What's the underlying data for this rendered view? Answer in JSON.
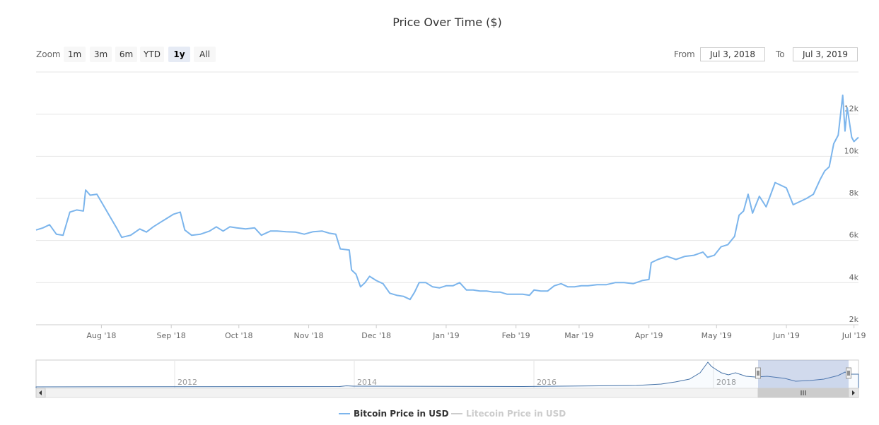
{
  "chart_data": {
    "type": "line",
    "title": "Price Over Time ($)",
    "zoom": {
      "label": "Zoom",
      "buttons": [
        "1m",
        "3m",
        "6m",
        "YTD",
        "1y",
        "All"
      ],
      "selected": "1y"
    },
    "range": {
      "from_label": "From",
      "from": "Jul 3, 2018",
      "to_label": "To",
      "to": "Jul 3, 2019"
    },
    "x_ticks": [
      "Aug '18",
      "Sep '18",
      "Oct '18",
      "Nov '18",
      "Dec '18",
      "Jan '19",
      "Feb '19",
      "Mar '19",
      "Apr '19",
      "May '19",
      "Jun '19",
      "Jul '19"
    ],
    "y_ticks": [
      "2k",
      "4k",
      "6k",
      "8k",
      "10k",
      "12k"
    ],
    "ylim": [
      2000,
      12000
    ],
    "grid": true,
    "series": [
      {
        "name": "Bitcoin Price in USD",
        "color": "#7cb5ec",
        "visible": true,
        "points": [
          [
            "2018-07-03",
            6500
          ],
          [
            "2018-07-06",
            6600
          ],
          [
            "2018-07-09",
            6750
          ],
          [
            "2018-07-12",
            6300
          ],
          [
            "2018-07-15",
            6250
          ],
          [
            "2018-07-18",
            7350
          ],
          [
            "2018-07-21",
            7450
          ],
          [
            "2018-07-24",
            7400
          ],
          [
            "2018-07-25",
            8400
          ],
          [
            "2018-07-27",
            8150
          ],
          [
            "2018-07-30",
            8200
          ],
          [
            "2018-08-02",
            7650
          ],
          [
            "2018-08-05",
            7100
          ],
          [
            "2018-08-08",
            6550
          ],
          [
            "2018-08-10",
            6150
          ],
          [
            "2018-08-14",
            6250
          ],
          [
            "2018-08-18",
            6550
          ],
          [
            "2018-08-21",
            6400
          ],
          [
            "2018-08-24",
            6650
          ],
          [
            "2018-08-27",
            6850
          ],
          [
            "2018-08-30",
            7050
          ],
          [
            "2018-09-02",
            7250
          ],
          [
            "2018-09-05",
            7350
          ],
          [
            "2018-09-07",
            6500
          ],
          [
            "2018-09-10",
            6250
          ],
          [
            "2018-09-14",
            6300
          ],
          [
            "2018-09-18",
            6450
          ],
          [
            "2018-09-21",
            6650
          ],
          [
            "2018-09-24",
            6450
          ],
          [
            "2018-09-27",
            6650
          ],
          [
            "2018-09-30",
            6600
          ],
          [
            "2018-10-04",
            6550
          ],
          [
            "2018-10-08",
            6600
          ],
          [
            "2018-10-11",
            6250
          ],
          [
            "2018-10-15",
            6450
          ],
          [
            "2018-10-18",
            6450
          ],
          [
            "2018-10-22",
            6420
          ],
          [
            "2018-10-26",
            6400
          ],
          [
            "2018-10-30",
            6300
          ],
          [
            "2018-11-03",
            6420
          ],
          [
            "2018-11-07",
            6450
          ],
          [
            "2018-11-10",
            6350
          ],
          [
            "2018-11-13",
            6300
          ],
          [
            "2018-11-15",
            5600
          ],
          [
            "2018-11-19",
            5550
          ],
          [
            "2018-11-20",
            4600
          ],
          [
            "2018-11-22",
            4400
          ],
          [
            "2018-11-24",
            3800
          ],
          [
            "2018-11-26",
            4000
          ],
          [
            "2018-11-28",
            4300
          ],
          [
            "2018-12-01",
            4100
          ],
          [
            "2018-12-04",
            3950
          ],
          [
            "2018-12-07",
            3500
          ],
          [
            "2018-12-10",
            3400
          ],
          [
            "2018-12-13",
            3350
          ],
          [
            "2018-12-16",
            3200
          ],
          [
            "2018-12-18",
            3550
          ],
          [
            "2018-12-20",
            4000
          ],
          [
            "2018-12-23",
            4000
          ],
          [
            "2018-12-26",
            3800
          ],
          [
            "2018-12-29",
            3750
          ],
          [
            "2019-01-01",
            3850
          ],
          [
            "2019-01-04",
            3850
          ],
          [
            "2019-01-07",
            4000
          ],
          [
            "2019-01-10",
            3650
          ],
          [
            "2019-01-13",
            3650
          ],
          [
            "2019-01-16",
            3600
          ],
          [
            "2019-01-19",
            3600
          ],
          [
            "2019-01-22",
            3550
          ],
          [
            "2019-01-25",
            3550
          ],
          [
            "2019-01-28",
            3450
          ],
          [
            "2019-02-01",
            3450
          ],
          [
            "2019-02-04",
            3450
          ],
          [
            "2019-02-07",
            3400
          ],
          [
            "2019-02-09",
            3650
          ],
          [
            "2019-02-12",
            3600
          ],
          [
            "2019-02-15",
            3600
          ],
          [
            "2019-02-18",
            3850
          ],
          [
            "2019-02-21",
            3950
          ],
          [
            "2019-02-24",
            3800
          ],
          [
            "2019-02-27",
            3800
          ],
          [
            "2019-03-02",
            3850
          ],
          [
            "2019-03-05",
            3850
          ],
          [
            "2019-03-09",
            3900
          ],
          [
            "2019-03-13",
            3900
          ],
          [
            "2019-03-17",
            4000
          ],
          [
            "2019-03-21",
            4000
          ],
          [
            "2019-03-25",
            3950
          ],
          [
            "2019-03-29",
            4100
          ],
          [
            "2019-04-01",
            4150
          ],
          [
            "2019-04-02",
            4950
          ],
          [
            "2019-04-05",
            5100
          ],
          [
            "2019-04-09",
            5250
          ],
          [
            "2019-04-13",
            5100
          ],
          [
            "2019-04-17",
            5250
          ],
          [
            "2019-04-21",
            5300
          ],
          [
            "2019-04-25",
            5450
          ],
          [
            "2019-04-27",
            5200
          ],
          [
            "2019-04-30",
            5300
          ],
          [
            "2019-05-03",
            5700
          ],
          [
            "2019-05-06",
            5800
          ],
          [
            "2019-05-09",
            6200
          ],
          [
            "2019-05-11",
            7200
          ],
          [
            "2019-05-13",
            7400
          ],
          [
            "2019-05-15",
            8200
          ],
          [
            "2019-05-17",
            7300
          ],
          [
            "2019-05-20",
            8100
          ],
          [
            "2019-05-23",
            7600
          ],
          [
            "2019-05-27",
            8750
          ],
          [
            "2019-05-30",
            8600
          ],
          [
            "2019-06-01",
            8500
          ],
          [
            "2019-06-04",
            7700
          ],
          [
            "2019-06-07",
            7850
          ],
          [
            "2019-06-10",
            8000
          ],
          [
            "2019-06-13",
            8200
          ],
          [
            "2019-06-16",
            8900
          ],
          [
            "2019-06-18",
            9300
          ],
          [
            "2019-06-20",
            9500
          ],
          [
            "2019-06-22",
            10600
          ],
          [
            "2019-06-24",
            11000
          ],
          [
            "2019-06-26",
            12900
          ],
          [
            "2019-06-27",
            11200
          ],
          [
            "2019-06-28",
            12300
          ],
          [
            "2019-06-30",
            10900
          ],
          [
            "2019-07-01",
            10700
          ],
          [
            "2019-07-03",
            10900
          ]
        ]
      },
      {
        "name": "Litecoin Price in USD",
        "color": "#cccccc",
        "visible": false,
        "points": []
      }
    ],
    "navigator": {
      "x_ticks": [
        "2012",
        "2014",
        "2016",
        "2018"
      ]
    }
  }
}
